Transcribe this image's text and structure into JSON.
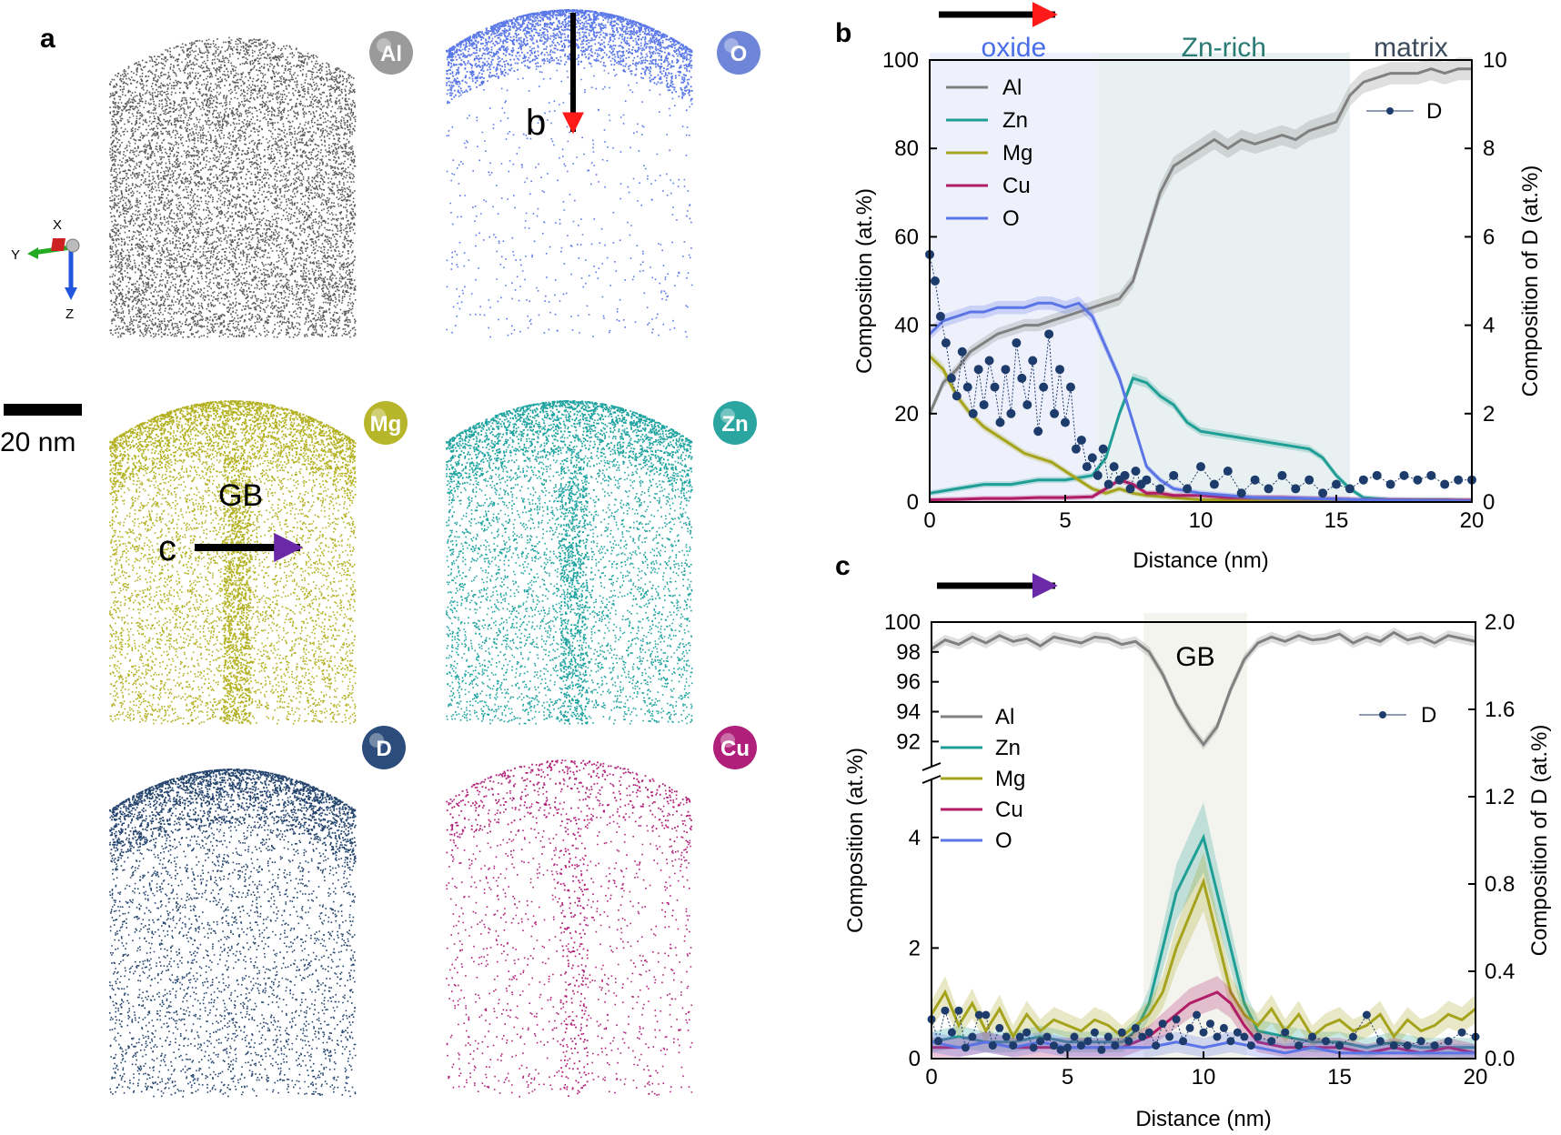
{
  "panel_a": {
    "label": "a",
    "scale_bar": "20 nm",
    "axis_labels": [
      "X",
      "Y",
      "Z"
    ],
    "annotations": {
      "b_arrow": "b",
      "c_arrow": "c",
      "gb": "GB"
    },
    "maps": [
      {
        "element": "Al",
        "color": "#5a5a5a",
        "badge_color": "#9a9a9a",
        "density": 9000,
        "cap_density": 0,
        "seg": "none"
      },
      {
        "element": "O",
        "color": "#5b78e8",
        "badge_color": "#6f86d8",
        "density": 600,
        "cap_density": 2600,
        "seg": "none"
      },
      {
        "element": "Mg",
        "color": "#b3b122",
        "badge_color": "#b7b52a",
        "density": 7000,
        "cap_density": 1800,
        "seg": "gb"
      },
      {
        "element": "Zn",
        "color": "#1fa3a0",
        "badge_color": "#2aa5a0",
        "density": 4500,
        "cap_density": 1500,
        "seg": "gb"
      },
      {
        "element": "D",
        "color": "#25456e",
        "badge_color": "#2c4c7c",
        "density": 3500,
        "cap_density": 1800,
        "seg": "none"
      },
      {
        "element": "Cu",
        "color": "#b0207a",
        "badge_color": "#b0207a",
        "density": 1300,
        "cap_density": 400,
        "seg": "gb"
      }
    ]
  },
  "chart_data": [
    {
      "panel": "b",
      "type": "line",
      "xlabel": "Distance (nm)",
      "ylabel": "Composition (at.%)",
      "ylabel_right": "Composition of D (at.%)",
      "xlim": [
        0,
        20
      ],
      "ylim": [
        0,
        100
      ],
      "ylim_right": [
        0,
        10
      ],
      "xticks": [
        "0",
        "5",
        "10",
        "15",
        "20"
      ],
      "yticks": [
        "0",
        "20",
        "40",
        "60",
        "80",
        "100"
      ],
      "yticks_right": [
        "0",
        "2",
        "4",
        "6",
        "8",
        "10"
      ],
      "arrow_color": "#ff1a1a",
      "regions": [
        {
          "label": "oxide",
          "x0": 0,
          "x1": 6.2,
          "color": "#eef0fb",
          "text_color": "#4a6fe8"
        },
        {
          "label": "Zn-rich",
          "x0": 6.2,
          "x1": 15.5,
          "color": "#e8f0f1",
          "text_color": "#2a7a74"
        },
        {
          "label": "matrix",
          "x0": 15.5,
          "x1": 20,
          "color": "#ffffff",
          "text_color": "#3a4a5a"
        }
      ],
      "legend": [
        "Al",
        "Zn",
        "Mg",
        "Cu",
        "O"
      ],
      "legend_right": "D",
      "series": [
        {
          "name": "Al",
          "color": "#808080",
          "x": [
            0,
            0.5,
            1,
            1.5,
            2,
            2.5,
            3,
            3.5,
            4,
            4.5,
            5,
            5.5,
            6,
            6.5,
            7,
            7.5,
            8,
            8.5,
            9,
            9.5,
            10,
            10.5,
            11,
            11.5,
            12,
            12.5,
            13,
            13.5,
            14,
            14.5,
            15,
            15.5,
            16,
            16.5,
            17,
            17.5,
            18,
            18.5,
            19,
            19.5,
            20
          ],
          "values": [
            20,
            27,
            30,
            34,
            36,
            38,
            39,
            40,
            40,
            41,
            42,
            43,
            44,
            45,
            46,
            50,
            60,
            70,
            76,
            78,
            80,
            82,
            80,
            82,
            81,
            82,
            83,
            82,
            84,
            85,
            86,
            92,
            95,
            96,
            97,
            97,
            97,
            98,
            97,
            98,
            98
          ]
        },
        {
          "name": "Zn",
          "color": "#1f9e96",
          "x": [
            0,
            1,
            2,
            3,
            4,
            5,
            6,
            6.5,
            7,
            7.5,
            8,
            8.5,
            9,
            9.5,
            10,
            11,
            12,
            13,
            14,
            14.5,
            15,
            15.5,
            16,
            17,
            18,
            19,
            20
          ],
          "values": [
            2,
            3,
            4,
            4,
            5,
            5,
            6,
            10,
            20,
            28,
            27,
            24,
            22,
            18,
            16,
            15,
            14,
            13,
            12,
            10,
            6,
            3,
            1,
            0.5,
            0.5,
            0.5,
            0.3
          ]
        },
        {
          "name": "Mg",
          "color": "#a5a21b",
          "x": [
            0,
            0.5,
            1,
            1.5,
            2,
            2.5,
            3,
            3.5,
            4,
            4.5,
            5,
            5.5,
            6,
            6.5,
            7,
            7.5,
            8,
            9,
            10,
            12,
            14,
            16,
            18,
            20
          ],
          "values": [
            33,
            30,
            24,
            20,
            17,
            15,
            13,
            11,
            10,
            9,
            7,
            5,
            3,
            2,
            3,
            2,
            1.5,
            1,
            0.5,
            0.5,
            0.3,
            0.2,
            0.2,
            0.1
          ]
        },
        {
          "name": "Cu",
          "color": "#b01c66",
          "x": [
            0,
            1,
            2,
            3,
            4,
            5,
            6,
            6.5,
            7,
            7.5,
            8,
            8.5,
            9,
            10,
            11,
            12,
            13,
            14,
            15,
            16,
            17,
            18,
            19,
            20
          ],
          "values": [
            0.5,
            0.6,
            0.8,
            0.8,
            1,
            1,
            1.2,
            3,
            5,
            4,
            2,
            2,
            1.5,
            1.5,
            1,
            1,
            1,
            0.8,
            0.7,
            0.5,
            0.5,
            0.4,
            0.4,
            0.4
          ]
        },
        {
          "name": "O",
          "color": "#5b74e6",
          "x": [
            0,
            0.5,
            1,
            1.5,
            2,
            2.5,
            3,
            3.5,
            4,
            4.5,
            5,
            5.5,
            6,
            6.5,
            7,
            7.5,
            8,
            8.5,
            9,
            10,
            12,
            14,
            16,
            18,
            20
          ],
          "values": [
            38,
            41,
            42,
            43,
            43,
            44,
            44,
            44,
            45,
            45,
            44,
            45,
            42,
            35,
            28,
            18,
            8,
            5,
            3,
            2,
            1,
            0.8,
            0.5,
            0.3,
            0.2
          ]
        }
      ],
      "series_right": {
        "name": "D",
        "color": "#1e3c6b",
        "x": [
          0,
          0.2,
          0.4,
          0.6,
          0.8,
          1,
          1.2,
          1.4,
          1.6,
          1.8,
          2,
          2.2,
          2.4,
          2.6,
          2.8,
          3,
          3.2,
          3.4,
          3.6,
          3.8,
          4,
          4.2,
          4.4,
          4.6,
          4.8,
          5,
          5.2,
          5.4,
          5.6,
          5.8,
          6,
          6.2,
          6.4,
          6.6,
          6.8,
          7,
          7.2,
          7.4,
          7.6,
          7.8,
          8,
          8.5,
          9,
          9.5,
          10,
          10.5,
          11,
          11.5,
          12,
          12.5,
          13,
          13.5,
          14,
          14.5,
          15,
          15.5,
          16,
          16.5,
          17,
          17.5,
          18,
          18.5,
          19,
          19.5,
          20
        ],
        "values": [
          5.6,
          5.0,
          4.2,
          3.6,
          2.8,
          2.4,
          3.4,
          2.6,
          2.0,
          3.0,
          2.2,
          3.2,
          2.6,
          1.8,
          3.0,
          2.0,
          3.6,
          2.8,
          2.2,
          3.2,
          1.6,
          2.6,
          3.8,
          2.0,
          3.0,
          1.8,
          2.6,
          1.2,
          1.4,
          0.8,
          1.0,
          0.6,
          1.2,
          0.4,
          0.8,
          0.5,
          0.6,
          0.3,
          0.7,
          0.4,
          0.5,
          0.3,
          0.6,
          0.3,
          0.8,
          0.4,
          0.7,
          0.2,
          0.5,
          0.3,
          0.6,
          0.3,
          0.5,
          0.2,
          0.4,
          0.3,
          0.5,
          0.6,
          0.4,
          0.6,
          0.5,
          0.6,
          0.4,
          0.5,
          0.5
        ]
      }
    },
    {
      "panel": "c",
      "type": "line",
      "xlabel": "Distance (nm)",
      "ylabel": "Composition (at.%)",
      "ylabel_right": "Composition of D (at.%)",
      "xlim": [
        0,
        20
      ],
      "ylim_upper": [
        90.5,
        100
      ],
      "ylim_lower": [
        0,
        5
      ],
      "ylim_right": [
        0,
        2
      ],
      "xticks": [
        "0",
        "5",
        "10",
        "15",
        "20"
      ],
      "yticks_upper": [
        "92",
        "94",
        "96",
        "98",
        "100"
      ],
      "yticks_lower": [
        "0",
        "2",
        "4"
      ],
      "yticks_right": [
        "0.0",
        "0.4",
        "0.8",
        "1.2",
        "1.6",
        "2.0"
      ],
      "arrow_color": "#6a2aa8",
      "regions": [
        {
          "label": "GB",
          "x0": 7.8,
          "x1": 11.6,
          "color": "#f4f4ee",
          "text_color": "#000000"
        }
      ],
      "legend": [
        "Al",
        "Zn",
        "Mg",
        "Cu",
        "O"
      ],
      "legend_right": "D",
      "series": [
        {
          "name": "Al",
          "color": "#808080",
          "x": [
            0,
            0.5,
            1,
            1.5,
            2,
            2.5,
            3,
            3.5,
            4,
            4.5,
            5,
            5.5,
            6,
            6.5,
            7,
            7.5,
            8,
            8.5,
            9,
            9.5,
            10,
            10.5,
            11,
            11.5,
            12,
            12.5,
            13,
            13.5,
            14,
            14.5,
            15,
            15.5,
            16,
            16.5,
            17,
            17.5,
            18,
            18.5,
            19,
            19.5,
            20
          ],
          "values": [
            98.2,
            98.8,
            98.5,
            99.0,
            98.6,
            99.1,
            98.7,
            98.9,
            98.4,
            99.0,
            98.8,
            98.6,
            99.0,
            98.9,
            98.5,
            98.7,
            98.0,
            96.5,
            94.5,
            93.0,
            91.8,
            93.0,
            95.5,
            97.5,
            98.6,
            99.0,
            98.7,
            99.1,
            98.8,
            98.9,
            99.2,
            98.6,
            99.0,
            98.7,
            99.3,
            98.8,
            99.0,
            98.6,
            99.1,
            98.9,
            98.7
          ]
        },
        {
          "name": "Zn",
          "color": "#1f9e96",
          "x": [
            0,
            1,
            2,
            3,
            4,
            5,
            6,
            7,
            7.5,
            8,
            8.5,
            9,
            9.5,
            10,
            10.5,
            11,
            11.5,
            12,
            13,
            14,
            15,
            16,
            17,
            18,
            19,
            20
          ],
          "values": [
            0.3,
            0.4,
            0.3,
            0.3,
            0.4,
            0.3,
            0.3,
            0.3,
            0.5,
            1.0,
            2.0,
            3.0,
            3.5,
            4.0,
            3.0,
            2.0,
            1.0,
            0.5,
            0.4,
            0.3,
            0.3,
            0.2,
            0.3,
            0.2,
            0.2,
            0.2
          ]
        },
        {
          "name": "Mg",
          "color": "#a5a21b",
          "x": [
            0,
            0.5,
            1,
            1.5,
            2,
            2.5,
            3,
            3.5,
            4,
            4.5,
            5,
            5.5,
            6,
            6.5,
            7,
            7.5,
            8,
            8.5,
            9,
            9.5,
            10,
            10.5,
            11,
            11.5,
            12,
            12.5,
            13,
            13.5,
            14,
            14.5,
            15,
            15.5,
            16,
            16.5,
            17,
            17.5,
            18,
            18.5,
            19,
            19.5,
            20
          ],
          "values": [
            0.8,
            1.2,
            0.6,
            1.0,
            0.5,
            0.9,
            0.4,
            0.8,
            0.5,
            0.7,
            0.6,
            0.5,
            0.7,
            0.6,
            0.4,
            0.6,
            0.8,
            1.2,
            2.0,
            2.6,
            3.2,
            2.2,
            1.2,
            0.8,
            0.6,
            0.9,
            0.5,
            0.8,
            0.4,
            0.6,
            0.7,
            0.5,
            0.6,
            0.8,
            0.4,
            0.7,
            0.5,
            0.6,
            0.8,
            0.7,
            0.9
          ]
        },
        {
          "name": "Cu",
          "color": "#b01c66",
          "x": [
            0,
            1,
            2,
            3,
            4,
            5,
            6,
            7,
            7.5,
            8,
            8.5,
            9,
            9.5,
            10,
            10.5,
            11,
            11.5,
            12,
            13,
            14,
            15,
            16,
            17,
            18,
            19,
            20
          ],
          "values": [
            0.2,
            0.2,
            0.3,
            0.2,
            0.2,
            0.2,
            0.2,
            0.2,
            0.3,
            0.4,
            0.6,
            0.8,
            1.0,
            1.1,
            1.2,
            1.0,
            0.6,
            0.3,
            0.2,
            0.2,
            0.2,
            0.1,
            0.2,
            0.1,
            0.2,
            0.1
          ]
        },
        {
          "name": "O",
          "color": "#5b74e6",
          "x": [
            0,
            1,
            2,
            3,
            4,
            5,
            6,
            7,
            8,
            9,
            10,
            11,
            12,
            13,
            14,
            15,
            16,
            17,
            18,
            19,
            20
          ],
          "values": [
            0.3,
            0.2,
            0.3,
            0.2,
            0.3,
            0.2,
            0.2,
            0.2,
            0.2,
            0.3,
            0.2,
            0.3,
            0.2,
            0.1,
            0.2,
            0.1,
            0.1,
            0.1,
            0.1,
            0.1,
            0.1
          ]
        }
      ],
      "series_right": {
        "name": "D",
        "color": "#1e3c6b",
        "x": [
          0,
          0.25,
          0.5,
          0.75,
          1,
          1.25,
          1.5,
          1.75,
          2,
          2.25,
          2.5,
          2.75,
          3,
          3.25,
          3.5,
          3.75,
          4,
          4.25,
          4.5,
          4.75,
          5,
          5.25,
          5.5,
          5.75,
          6,
          6.25,
          6.5,
          6.75,
          7,
          7.25,
          7.5,
          7.75,
          8,
          8.25,
          8.5,
          8.75,
          9,
          9.25,
          9.5,
          9.75,
          10,
          10.25,
          10.5,
          10.75,
          11,
          11.25,
          11.5,
          11.75,
          12,
          12.5,
          13,
          13.5,
          14,
          14.5,
          15,
          15.5,
          16,
          16.5,
          17,
          17.5,
          18,
          18.5,
          19,
          19.5,
          20
        ],
        "values": [
          0.18,
          0.08,
          0.22,
          0.12,
          0.22,
          0.05,
          0.1,
          0.2,
          0.2,
          0.06,
          0.14,
          0.1,
          0.06,
          0.1,
          0.12,
          0.05,
          0.08,
          0.1,
          0.06,
          0.04,
          0.05,
          0.1,
          0.06,
          0.08,
          0.12,
          0.04,
          0.1,
          0.06,
          0.12,
          0.08,
          0.14,
          0.1,
          0.12,
          0.06,
          0.16,
          0.1,
          0.18,
          0.08,
          0.14,
          0.2,
          0.12,
          0.16,
          0.1,
          0.14,
          0.08,
          0.12,
          0.1,
          0.06,
          0.1,
          0.08,
          0.12,
          0.06,
          0.1,
          0.08,
          0.06,
          0.1,
          0.2,
          0.08,
          0.06,
          0.06,
          0.08,
          0.06,
          0.08,
          0.12,
          0.1
        ]
      }
    }
  ]
}
